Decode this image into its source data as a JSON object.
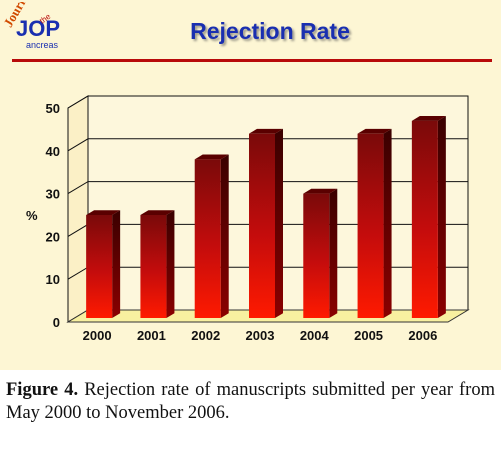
{
  "slide": {
    "title": "Rejection Rate",
    "logo": {
      "line1": "Journal",
      "of": "of",
      "the": "the",
      "word": "ancreas",
      "letters": "JOP"
    }
  },
  "chart_data": {
    "type": "bar",
    "title": "Rejection Rate",
    "categories": [
      "2000",
      "2001",
      "2002",
      "2003",
      "2004",
      "2005",
      "2006"
    ],
    "values": [
      25,
      25,
      38,
      44,
      30,
      44,
      47
    ],
    "xlabel": "",
    "ylabel": "%",
    "ylim": [
      0,
      50
    ],
    "yticks": [
      "0",
      "10",
      "20",
      "30",
      "40",
      "50"
    ],
    "grid": true,
    "colors": {
      "bar_top": "#7a0a0a",
      "bar_bottom": "#ff1a00",
      "floor": "#f8f0a0",
      "gridline": "#111111"
    }
  },
  "caption": {
    "label": "Figure 4.",
    "text": " Rejection rate of manuscripts submitted per year from May 2000 to November 2006."
  }
}
